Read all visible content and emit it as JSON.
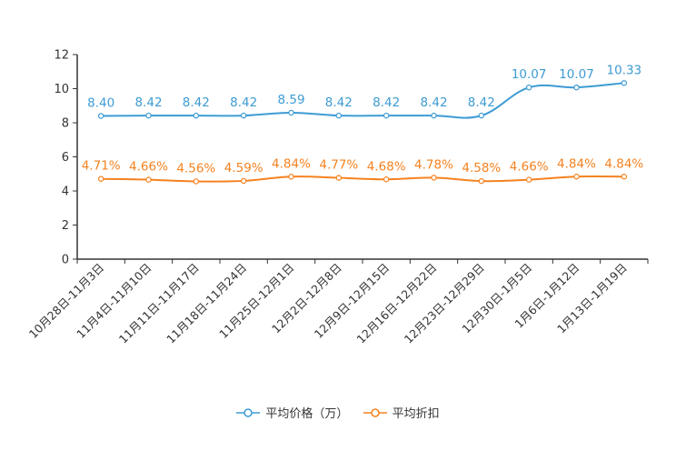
{
  "chart_data": {
    "type": "line",
    "categories": [
      "10月28日-11月3日",
      "11月4日-11月10日",
      "11月11日-11月17日",
      "11月18日-11月24日",
      "11月25日-12月1日",
      "12月2日-12月8日",
      "12月9日-12月15日",
      "12月16日-12月22日",
      "12月23日-12月29日",
      "12月30日-1月5日",
      "1月6日-1月12日",
      "1月13日-1月19日"
    ],
    "series": [
      {
        "name": "平均价格（万）",
        "color": "#3d9bd4",
        "values": [
          8.4,
          8.42,
          8.42,
          8.42,
          8.59,
          8.42,
          8.42,
          8.42,
          8.42,
          10.07,
          10.07,
          10.33
        ],
        "labels": [
          "8.40",
          "8.42",
          "8.42",
          "8.42",
          "8.59",
          "8.42",
          "8.42",
          "8.42",
          "8.42",
          "10.07",
          "10.07",
          "10.33"
        ]
      },
      {
        "name": "平均折扣",
        "color": "#f5821f",
        "values": [
          4.71,
          4.66,
          4.56,
          4.59,
          4.84,
          4.77,
          4.68,
          4.78,
          4.58,
          4.66,
          4.84,
          4.84
        ],
        "labels": [
          "4.71%",
          "4.66%",
          "4.56%",
          "4.59%",
          "4.84%",
          "4.77%",
          "4.68%",
          "4.78%",
          "4.58%",
          "4.66%",
          "4.84%",
          "4.84%"
        ]
      }
    ],
    "yticks": [
      "0",
      "2",
      "4",
      "6",
      "8",
      "10",
      "12"
    ],
    "ylim": [
      0,
      12
    ],
    "title": "",
    "xlabel": "",
    "ylabel": "",
    "legend_position": "bottom"
  }
}
